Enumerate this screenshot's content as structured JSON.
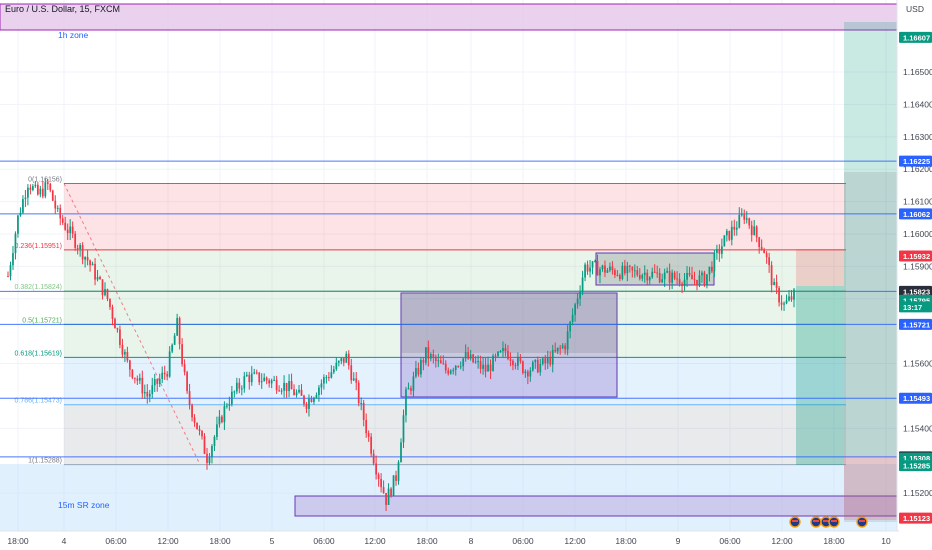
{
  "header": {
    "symbol_title": "Euro / U.S. Dollar, 15, FXCM",
    "currency": "USD"
  },
  "chart_data": {
    "type": "candlestick",
    "title": "Euro / U.S. Dollar, 15, FXCM",
    "ylim": [
      1.1508,
      1.1671
    ],
    "y_ticks": [
      1.152,
      1.154,
      1.156,
      1.158,
      1.159,
      1.16,
      1.161,
      1.162,
      1.163,
      1.164,
      1.165
    ],
    "y_tick_labels": [
      "1.15200",
      "1.15400",
      "1.15600",
      "1.15800",
      "1.15900",
      "1.16000",
      "1.16100",
      "1.16200",
      "1.16300",
      "1.16400",
      "1.16500"
    ],
    "x_tick_labels": [
      "18:00",
      "4",
      "06:00",
      "12:00",
      "18:00",
      "5",
      "06:00",
      "12:00",
      "18:00",
      "8",
      "06:00",
      "12:00",
      "18:00",
      "9",
      "06:00",
      "12:00",
      "18:00",
      "10"
    ],
    "price_path": [
      [
        0,
        1.1587
      ],
      [
        1,
        1.1605
      ],
      [
        2,
        1.1616
      ],
      [
        3,
        1.1612
      ],
      [
        4,
        1.1615
      ],
      [
        5,
        1.1606
      ],
      [
        8,
        1.1592
      ],
      [
        10,
        1.158
      ],
      [
        12,
        1.156
      ],
      [
        14,
        1.155
      ],
      [
        16,
        1.1558
      ],
      [
        17,
        1.1572
      ],
      [
        18,
        1.155
      ],
      [
        20,
        1.1531
      ],
      [
        22,
        1.1548
      ],
      [
        24,
        1.1556
      ],
      [
        26,
        1.1555
      ],
      [
        28,
        1.1553
      ],
      [
        30,
        1.1548
      ],
      [
        32,
        1.1556
      ],
      [
        34,
        1.1562
      ],
      [
        35,
        1.1552
      ],
      [
        36,
        1.154
      ],
      [
        37,
        1.1528
      ],
      [
        38,
        1.1518
      ],
      [
        39,
        1.1525
      ],
      [
        40,
        1.155
      ],
      [
        42,
        1.1563
      ],
      [
        44,
        1.1558
      ],
      [
        46,
        1.1562
      ],
      [
        48,
        1.1558
      ],
      [
        50,
        1.1564
      ],
      [
        52,
        1.1558
      ],
      [
        54,
        1.156
      ],
      [
        56,
        1.1566
      ],
      [
        57,
        1.1578
      ],
      [
        58,
        1.159
      ],
      [
        60,
        1.1589
      ],
      [
        62,
        1.1588
      ],
      [
        64,
        1.1588
      ],
      [
        66,
        1.1587
      ],
      [
        68,
        1.1586
      ],
      [
        70,
        1.1586
      ],
      [
        72,
        1.1598
      ],
      [
        74,
        1.1606
      ],
      [
        76,
        1.1595
      ],
      [
        77,
        1.1583
      ],
      [
        78,
        1.1578
      ],
      [
        79,
        1.1581
      ]
    ],
    "horizontal_levels": [
      {
        "price": 1.16225,
        "label": "1.16225"
      },
      {
        "price": 1.16062,
        "label": "1.16062"
      },
      {
        "price": 1.15823,
        "label": "1.15823"
      },
      {
        "price": 1.15721,
        "label": "1.15721"
      },
      {
        "price": 1.15493,
        "label": "1.15493"
      },
      {
        "price": 1.15312,
        "label": "1.15312"
      }
    ],
    "fib_levels": [
      {
        "label": "0(1.16156)",
        "price": 1.16156,
        "color": "#787b86"
      },
      {
        "label": "0.236(1.15951)",
        "price": 1.15951,
        "color": "#f23645"
      },
      {
        "label": "0.382(1.15824)",
        "price": 1.15824,
        "color": "#81c784"
      },
      {
        "label": "0.5(1.15721)",
        "price": 1.15721,
        "color": "#4caf50"
      },
      {
        "label": "0.618(1.15619)",
        "price": 1.15619,
        "color": "#089981"
      },
      {
        "label": "0.786(1.15473)",
        "price": 1.15473,
        "color": "#64b5f6"
      },
      {
        "label": "1(1.15288)",
        "price": 1.15288,
        "color": "#787b86"
      }
    ],
    "zones": [
      {
        "label": "1h zone",
        "top": 1.1671,
        "bottom": 1.1667
      },
      {
        "label": "15m SR zone",
        "top": 1.1529,
        "bottom": 1.1508
      }
    ],
    "price_badges": [
      {
        "label": "1.16607",
        "price": 1.16607,
        "bg": "#089981",
        "fg": "#ffffff"
      },
      {
        "label": "1.16225",
        "price": 1.16225,
        "bg": "#2962ff",
        "fg": "#ffffff"
      },
      {
        "label": "1.16062",
        "price": 1.16062,
        "bg": "#2962ff",
        "fg": "#ffffff"
      },
      {
        "label": "1.15932",
        "price": 1.15932,
        "bg": "#f23645",
        "fg": "#ffffff"
      },
      {
        "label": "1.15823",
        "price": 1.15823,
        "bg": "#2a2e39",
        "fg": "#ffffff"
      },
      {
        "label": "1.15795",
        "price": 1.15795,
        "bg": "#089981",
        "fg": "#ffffff"
      },
      {
        "label": "13:17",
        "price": 1.15775,
        "bg": "#089981",
        "fg": "#ffffff"
      },
      {
        "label": "1.15721",
        "price": 1.15721,
        "bg": "#2962ff",
        "fg": "#ffffff"
      },
      {
        "label": "1.15493",
        "price": 1.15493,
        "bg": "#2962ff",
        "fg": "#ffffff"
      },
      {
        "label": "1.15312",
        "price": 1.15312,
        "bg": "#2a2e39",
        "fg": "#ffffff"
      },
      {
        "label": "1.15308",
        "price": 1.15308,
        "bg": "#089981",
        "fg": "#ffffff"
      },
      {
        "label": "1.15285",
        "price": 1.15285,
        "bg": "#089981",
        "fg": "#ffffff"
      },
      {
        "label": "1.15123",
        "price": 1.15123,
        "bg": "#f23645",
        "fg": "#ffffff"
      }
    ],
    "colors": {
      "up": "#089981",
      "down": "#f23645",
      "level_line": "#2962ff",
      "zone_fill": "#e1bee7",
      "zone_border": "#9c27b0"
    },
    "grid": true
  }
}
